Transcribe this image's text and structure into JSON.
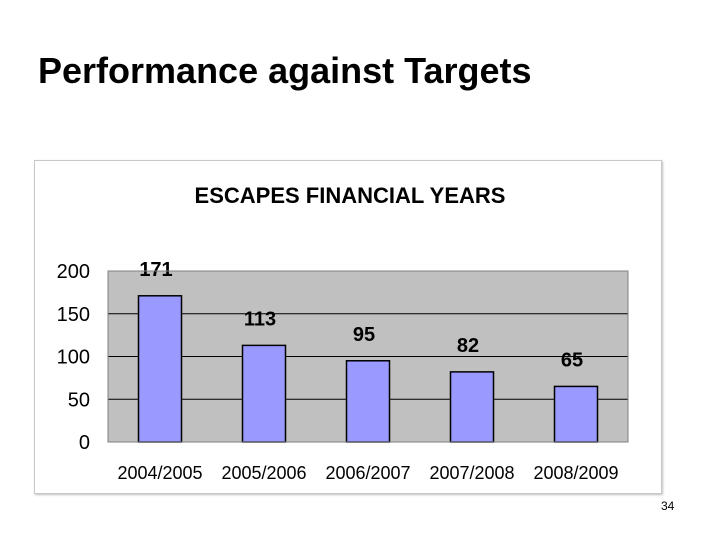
{
  "slide": {
    "title": "Performance against Targets",
    "page_number": "34"
  },
  "chart_data": {
    "type": "bar",
    "title": "ESCAPES FINANCIAL YEARS",
    "categories": [
      "2004/2005",
      "2005/2006",
      "2006/2007",
      "2007/2008",
      "2008/2009"
    ],
    "values": [
      171,
      113,
      95,
      82,
      65
    ],
    "data_labels": [
      "171",
      "113",
      "95",
      "82",
      "65"
    ],
    "yticks": [
      "0",
      "50",
      "100",
      "150",
      "200"
    ],
    "ylim": [
      0,
      200
    ],
    "xlabel": "",
    "ylabel": "",
    "grid": true,
    "legend": "none",
    "colors": {
      "bar": "#9999ff",
      "plot_background": "#c0c0c0",
      "gridline": "#000000"
    }
  }
}
